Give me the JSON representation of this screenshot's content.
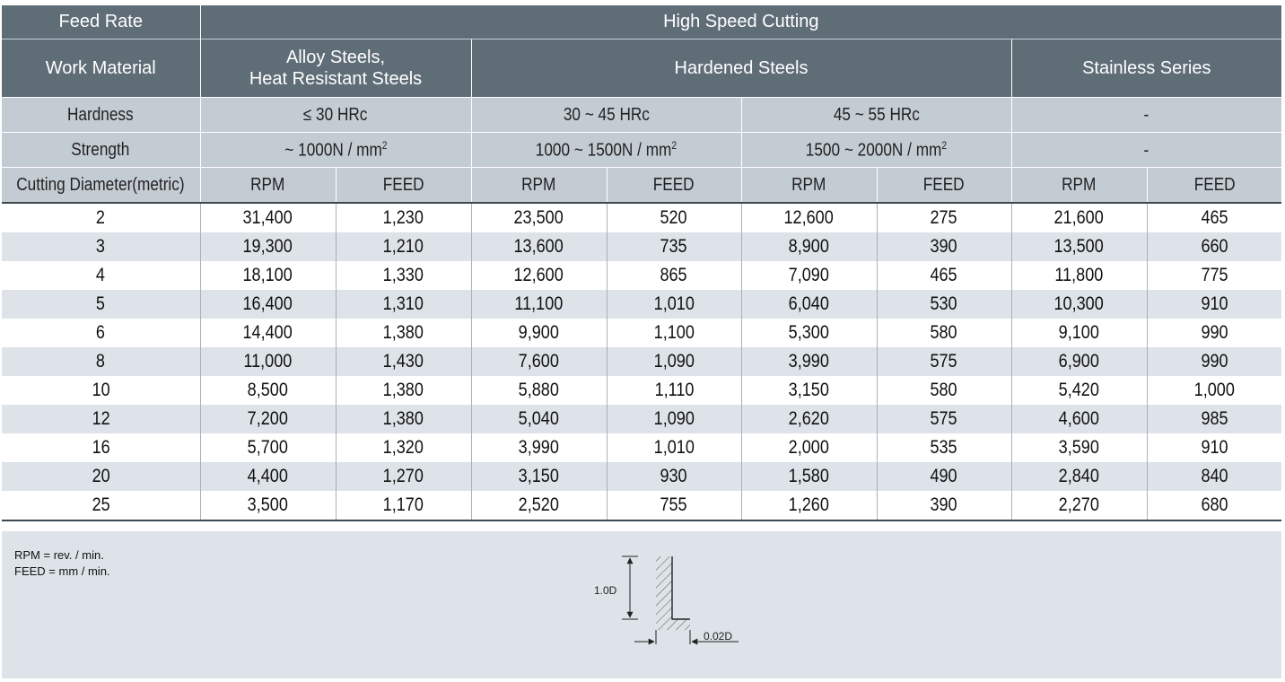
{
  "header": {
    "feed_rate": "Feed Rate",
    "high_speed_cutting": "High Speed Cutting",
    "work_material": "Work Material",
    "materials": [
      "Alloy Steels, Heat Resistant Steels",
      "Hardened Steels",
      "Stainless Series"
    ],
    "alloy_line1": "Alloy Steels,",
    "alloy_line2": "Heat Resistant Steels",
    "hardness_label": "Hardness",
    "hardness": [
      "≤ 30 HRc",
      "30 ~ 45 HRc",
      "45 ~ 55 HRc",
      "-"
    ],
    "strength_label": "Strength",
    "strength": [
      {
        "text": "~ 1000N / mm",
        "sup": "2"
      },
      {
        "text": "1000 ~ 1500N / mm",
        "sup": "2"
      },
      {
        "text": "1500 ~ 2000N / mm",
        "sup": "2"
      },
      {
        "text": "-",
        "sup": ""
      }
    ],
    "diameter_label": "Cutting Diameter(metric)",
    "rpm": "RPM",
    "feed": "FEED"
  },
  "rows": [
    {
      "d": "2",
      "v": [
        "31,400",
        "1,230",
        "23,500",
        "520",
        "12,600",
        "275",
        "21,600",
        "465"
      ]
    },
    {
      "d": "3",
      "v": [
        "19,300",
        "1,210",
        "13,600",
        "735",
        "8,900",
        "390",
        "13,500",
        "660"
      ]
    },
    {
      "d": "4",
      "v": [
        "18,100",
        "1,330",
        "12,600",
        "865",
        "7,090",
        "465",
        "11,800",
        "775"
      ]
    },
    {
      "d": "5",
      "v": [
        "16,400",
        "1,310",
        "11,100",
        "1,010",
        "6,040",
        "530",
        "10,300",
        "910"
      ]
    },
    {
      "d": "6",
      "v": [
        "14,400",
        "1,380",
        "9,900",
        "1,100",
        "5,300",
        "580",
        "9,100",
        "990"
      ]
    },
    {
      "d": "8",
      "v": [
        "11,000",
        "1,430",
        "7,600",
        "1,090",
        "3,990",
        "575",
        "6,900",
        "990"
      ]
    },
    {
      "d": "10",
      "v": [
        "8,500",
        "1,380",
        "5,880",
        "1,110",
        "3,150",
        "580",
        "5,420",
        "1,000"
      ]
    },
    {
      "d": "12",
      "v": [
        "7,200",
        "1,380",
        "5,040",
        "1,090",
        "2,620",
        "575",
        "4,600",
        "985"
      ]
    },
    {
      "d": "16",
      "v": [
        "5,700",
        "1,320",
        "3,990",
        "1,010",
        "2,000",
        "535",
        "3,590",
        "910"
      ]
    },
    {
      "d": "20",
      "v": [
        "4,400",
        "1,270",
        "3,150",
        "930",
        "1,580",
        "490",
        "2,840",
        "840"
      ]
    },
    {
      "d": "25",
      "v": [
        "3,500",
        "1,170",
        "2,520",
        "755",
        "1,260",
        "390",
        "2,270",
        "680"
      ]
    }
  ],
  "notes": {
    "rpm_def": "RPM = rev. / min.",
    "feed_def": "FEED = mm / min."
  },
  "figure": {
    "depth_label": "1.0D",
    "width_label": "0.02D"
  }
}
